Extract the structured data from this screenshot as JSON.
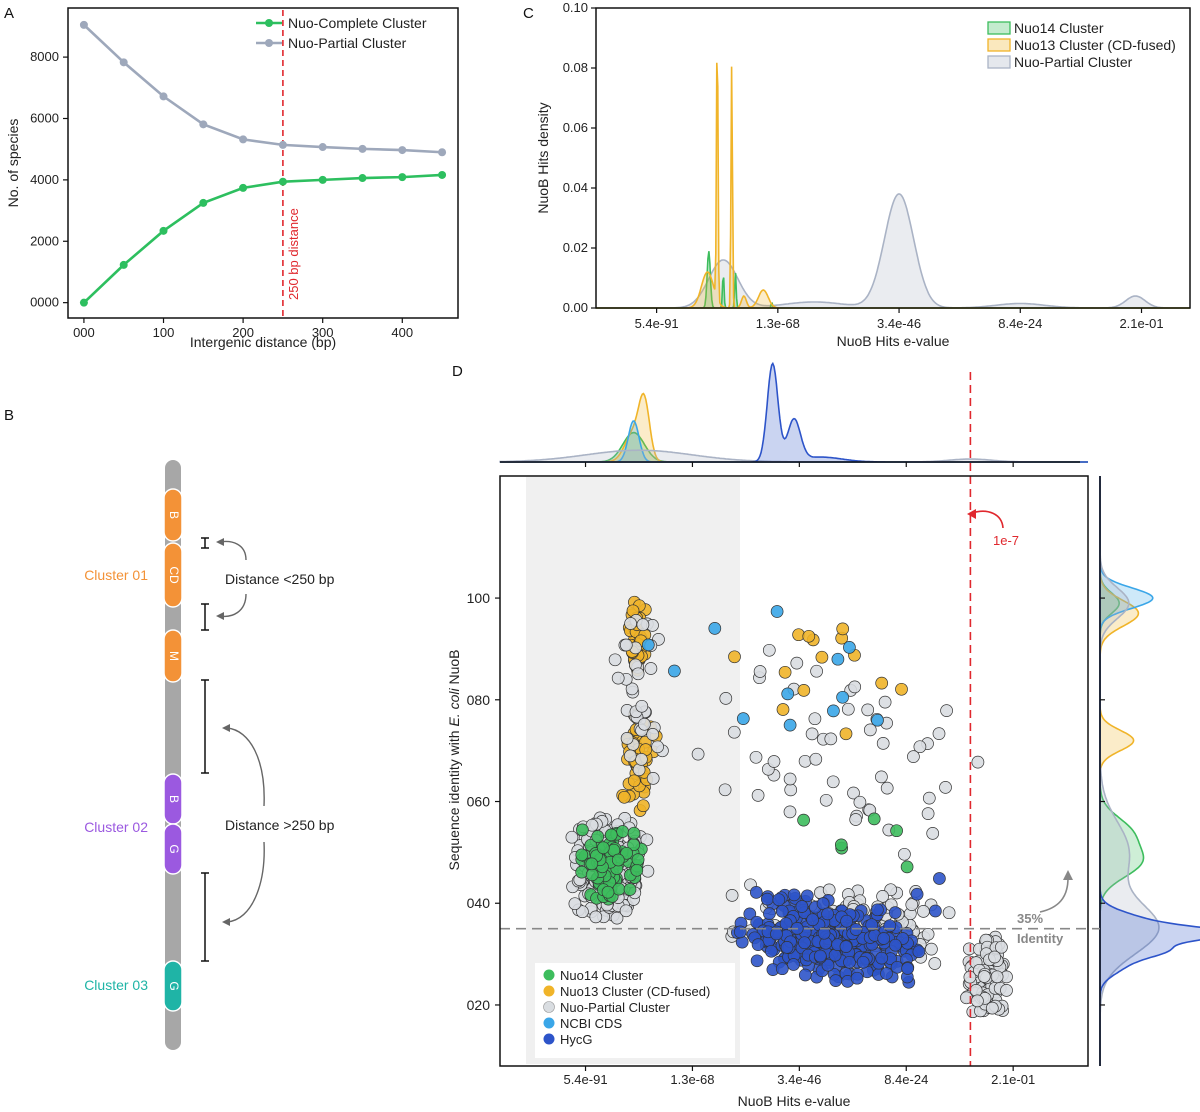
{
  "panels": {
    "a": "A",
    "b": "B",
    "c": "C",
    "d": "D"
  },
  "colors": {
    "complete": "#2dbf5f",
    "partial": "#9ea8bb",
    "nuo14": "#3dbd5d",
    "nuo13": "#f0b429",
    "partial_kde": "#aab3c5",
    "partial_point": "#d9dde1",
    "ncbi": "#3aa6e8",
    "hycg": "#2d54c9",
    "red": "#e0282e",
    "cluster01": "#f39237",
    "cluster02": "#9b59e0",
    "cluster03": "#1fb4a6",
    "chromosome": "#a7a7a7"
  },
  "chart_data": [
    {
      "id": "A",
      "type": "line",
      "x": [
        0,
        50,
        100,
        150,
        200,
        250,
        300,
        350,
        400,
        450
      ],
      "series": [
        {
          "name": "Nuo-Complete Cluster",
          "values": [
            0,
            1230,
            2340,
            3250,
            3740,
            3940,
            4000,
            4060,
            4090,
            4160
          ]
        },
        {
          "name": "Nuo-Partial Cluster",
          "values": [
            9050,
            7830,
            6720,
            5810,
            5320,
            5140,
            5070,
            5010,
            4970,
            4900
          ]
        }
      ],
      "xticks": [
        "000",
        "100",
        "200",
        "300",
        "400"
      ],
      "xtick_values": [
        0,
        100,
        200,
        300,
        400
      ],
      "yticks": [
        "0000",
        "2000",
        "4000",
        "6000",
        "8000"
      ],
      "ytick_values": [
        0,
        2000,
        4000,
        6000,
        8000
      ],
      "xlim": [
        -20,
        470
      ],
      "ylim": [
        -500,
        9600
      ],
      "xlabel": "Intergenic distance (bp)",
      "ylabel": "No. of species",
      "vline": {
        "x": 250,
        "label": "250 bp distance"
      },
      "legend": "top-right"
    },
    {
      "id": "C",
      "type": "area",
      "xticks": [
        "5.4e-91",
        "1.3e-68",
        "3.4e-46",
        "8.4e-24",
        "2.1e-01"
      ],
      "yticks": [
        "0.00",
        "0.02",
        "0.04",
        "0.06",
        "0.08",
        "0.10"
      ],
      "ytick_values": [
        0,
        0.02,
        0.04,
        0.06,
        0.08,
        0.1
      ],
      "ylim": [
        0,
        0.1
      ],
      "xlabel": "NuoB Hits e-value",
      "ylabel": "NuoB Hits density",
      "series": [
        {
          "name": "Nuo14 Cluster",
          "peaks": [
            [
              0.93,
              0.019,
              0.013
            ],
            [
              1.05,
              0.012,
              0.006
            ],
            [
              1.15,
              0.012,
              0.006
            ],
            [
              1.45,
              0.002,
              0.005
            ]
          ]
        },
        {
          "name": "Nuo13 Cluster (CD-fused)",
          "peaks": [
            [
              1.0,
              0.094,
              0.006
            ],
            [
              1.12,
              0.082,
              0.006
            ],
            [
              1.22,
              0.004,
              0.02
            ],
            [
              1.38,
              0.006,
              0.04
            ],
            [
              0.92,
              0.012,
              0.05
            ]
          ]
        },
        {
          "name": "Nuo-Partial Cluster",
          "peaks": [
            [
              1.05,
              0.016,
              0.12
            ],
            [
              2.5,
              0.038,
              0.12
            ],
            [
              1.8,
              0.002,
              0.25
            ],
            [
              3.5,
              0.0015,
              0.2
            ],
            [
              4.45,
              0.004,
              0.08
            ]
          ]
        }
      ],
      "legend": "top-right"
    },
    {
      "id": "D",
      "type": "scatter",
      "xticks": [
        "5.4e-91",
        "1.3e-68",
        "3.4e-46",
        "8.4e-24",
        "2.1e-01"
      ],
      "yticks": [
        "020",
        "040",
        "060",
        "080",
        "100"
      ],
      "ytick_values": [
        20,
        40,
        60,
        80,
        100
      ],
      "ylim": [
        8,
        124
      ],
      "xlabel": "NuoB Hits e-value",
      "ylabel_prefix": "Sequence identity with ",
      "ylabel_italic": "E. coli",
      "ylabel_suffix": " NuoB",
      "vline": {
        "x": 3.6,
        "label": "1e-7"
      },
      "hline": {
        "y": 35,
        "label_line1": "35%",
        "label_line2": "Identity"
      },
      "series": [
        "Nuo14 Cluster",
        "Nuo13 Cluster (CD-fused)",
        "Nuo-Partial Cluster",
        "NCBI CDS",
        "HycG"
      ],
      "clusters": [
        {
          "series": "Nuo-Partial Cluster",
          "n": 260,
          "x": [
            -0.15,
            0.6
          ],
          "y": [
            36,
            58
          ]
        },
        {
          "series": "Nuo14 Cluster",
          "n": 85,
          "x": [
            -0.1,
            0.55
          ],
          "y": [
            40,
            56
          ]
        },
        {
          "series": "Nuo13 Cluster (CD-fused)",
          "n": 55,
          "x": [
            0.3,
            0.7
          ],
          "y": [
            58,
            79
          ]
        },
        {
          "series": "Nuo13 Cluster (CD-fused)",
          "n": 45,
          "x": [
            0.38,
            0.58
          ],
          "y": [
            85,
            100
          ]
        },
        {
          "series": "Nuo-Partial Cluster",
          "n": 40,
          "x": [
            0.25,
            0.75
          ],
          "y": [
            60,
            100
          ]
        },
        {
          "series": "Nuo-Partial Cluster",
          "n": 140,
          "x": [
            1.3,
            3.5
          ],
          "y": [
            27,
            44
          ]
        },
        {
          "series": "HycG",
          "n": 330,
          "x": [
            1.35,
            3.2
          ],
          "y": [
            26,
            44
          ]
        },
        {
          "series": "Nuo-Partial Cluster",
          "n": 110,
          "x": [
            3.55,
            3.95
          ],
          "y": [
            17,
            35
          ]
        },
        {
          "series": "Nuo-Partial Cluster",
          "n": 55,
          "x": [
            1.0,
            3.9
          ],
          "y": [
            45,
            100
          ]
        },
        {
          "series": "Nuo13 Cluster (CD-fused)",
          "n": 14,
          "x": [
            0.8,
            3.5
          ],
          "y": [
            72,
            98
          ]
        },
        {
          "series": "NCBI CDS",
          "n": 12,
          "x": [
            0.35,
            3.4
          ],
          "y": [
            64,
            100
          ]
        },
        {
          "series": "Nuo14 Cluster",
          "n": 6,
          "x": [
            1.5,
            3.6
          ],
          "y": [
            44,
            60
          ]
        },
        {
          "series": "HycG",
          "n": 6,
          "x": [
            2.5,
            3.6
          ],
          "y": [
            20,
            56
          ]
        }
      ],
      "marginal_top": [
        {
          "series": "Nuo14 Cluster",
          "peaks": [
            [
              0.45,
              0.3,
              0.1
            ]
          ]
        },
        {
          "series": "Nuo13 Cluster (CD-fused)",
          "peaks": [
            [
              0.55,
              0.55,
              0.05
            ],
            [
              0.45,
              0.3,
              0.08
            ]
          ]
        },
        {
          "series": "NCBI CDS",
          "peaks": [
            [
              0.45,
              0.42,
              0.05
            ]
          ]
        },
        {
          "series": "Nuo-Partial Cluster",
          "peaks": [
            [
              0.5,
              0.12,
              0.5
            ],
            [
              3.6,
              0.03,
              0.2
            ]
          ]
        },
        {
          "series": "HycG",
          "peaks": [
            [
              1.75,
              1.0,
              0.05
            ],
            [
              1.95,
              0.42,
              0.06
            ],
            [
              2.2,
              0.05,
              0.2
            ]
          ]
        }
      ],
      "marginal_right": [
        {
          "series": "Nuo14 Cluster",
          "peaks": [
            [
              48,
              0.4,
              3
            ],
            [
              54,
              0.3,
              3
            ],
            [
              99,
              0.2,
              2
            ]
          ]
        },
        {
          "series": "Nuo13 Cluster (CD-fused)",
          "peaks": [
            [
              72,
              0.35,
              2
            ],
            [
              97,
              0.4,
              2.5
            ]
          ]
        },
        {
          "series": "NCBI CDS",
          "peaks": [
            [
              100,
              0.55,
              2
            ]
          ]
        },
        {
          "series": "Nuo-Partial Cluster",
          "peaks": [
            [
              35,
              0.6,
              5
            ],
            [
              50,
              0.3,
              6
            ],
            [
              99,
              0.3,
              3
            ]
          ]
        },
        {
          "series": "HycG",
          "peaks": [
            [
              34,
              1.0,
              1.2
            ],
            [
              31,
              0.6,
              1.5
            ],
            [
              36,
              0.5,
              2
            ],
            [
              28,
              0.25,
              2
            ]
          ]
        }
      ]
    }
  ],
  "diagram": {
    "clusters": [
      {
        "label": "Cluster 01",
        "genes": [
          "B",
          "CD",
          "M"
        ]
      },
      {
        "label": "Cluster 02",
        "genes": [
          "B",
          "G"
        ]
      },
      {
        "label": "Cluster 03",
        "genes": [
          "G"
        ]
      }
    ],
    "distance_short": "Distance <250 bp",
    "distance_long": "Distance >250 bp"
  }
}
